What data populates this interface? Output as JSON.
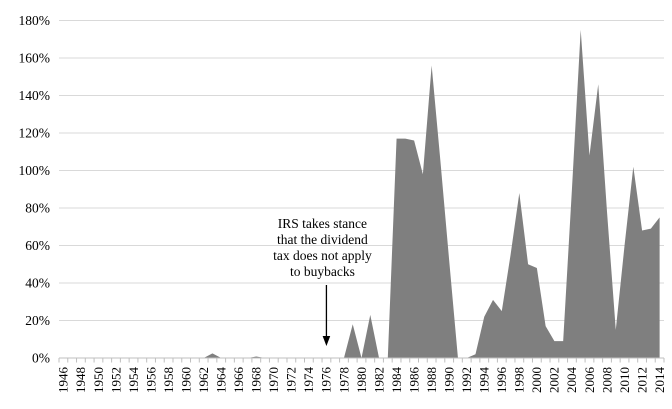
{
  "chart_data": {
    "type": "area",
    "title": "",
    "x": [
      1946,
      1947,
      1948,
      1949,
      1950,
      1951,
      1952,
      1953,
      1954,
      1955,
      1956,
      1957,
      1958,
      1959,
      1960,
      1961,
      1962,
      1963,
      1964,
      1965,
      1966,
      1967,
      1968,
      1969,
      1970,
      1971,
      1972,
      1973,
      1974,
      1975,
      1976,
      1977,
      1978,
      1979,
      1980,
      1981,
      1982,
      1983,
      1984,
      1985,
      1986,
      1987,
      1988,
      1989,
      1990,
      1991,
      1992,
      1993,
      1994,
      1995,
      1996,
      1997,
      1998,
      1999,
      2000,
      2001,
      2002,
      2003,
      2004,
      2005,
      2006,
      2007,
      2008,
      2009,
      2010,
      2011,
      2012,
      2013,
      2014
    ],
    "values": [
      0,
      0,
      0,
      0,
      0,
      0,
      0,
      0,
      0,
      0,
      0,
      0,
      0,
      0,
      0,
      0,
      0,
      2.5,
      0,
      0,
      0,
      0,
      0.8,
      0,
      0,
      0,
      0,
      0,
      0,
      0,
      0,
      0,
      0,
      18,
      0,
      23,
      0,
      0,
      117,
      117,
      116,
      98,
      156,
      105,
      52,
      0,
      0,
      2,
      22,
      31,
      25,
      55,
      88,
      50,
      48,
      17,
      9,
      9,
      90,
      175,
      108,
      146,
      78,
      15,
      60,
      102,
      68,
      69,
      75
    ],
    "ylim": [
      0,
      180
    ],
    "ytick_step": 20,
    "ytick_labels": [
      "0%",
      "20%",
      "40%",
      "60%",
      "80%",
      "100%",
      "120%",
      "140%",
      "160%",
      "180%"
    ],
    "xtick_labels": [
      "1946",
      "1948",
      "1950",
      "1952",
      "1954",
      "1956",
      "1958",
      "1960",
      "1962",
      "1964",
      "1966",
      "1968",
      "1970",
      "1972",
      "1974",
      "1976",
      "1978",
      "1980",
      "1982",
      "1984",
      "1986",
      "1988",
      "1990",
      "1992",
      "1994",
      "1996",
      "1998",
      "2000",
      "2002",
      "2004",
      "2006",
      "2008",
      "2010",
      "2012",
      "2014"
    ],
    "xtick_label_every": 2,
    "grid": true,
    "legend": "none",
    "colors": {
      "area_fill": "#7f7f7f",
      "gridline": "#d9d9d9",
      "axis_line": "#bfbfbf",
      "tick_mark": "#bfbfbf",
      "text": "#000000",
      "background": "#ffffff"
    },
    "annotation": {
      "text_lines": [
        "IRS takes stance",
        "that the dividend",
        "tax does not apply",
        "to buybacks"
      ],
      "arrow_target_year": 1976
    }
  }
}
